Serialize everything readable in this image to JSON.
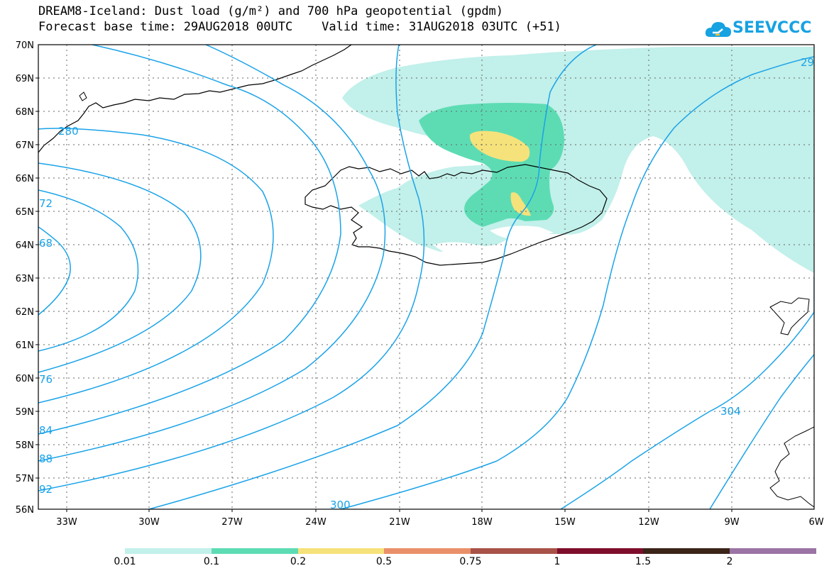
{
  "title_line1": "DREAM8-Iceland: Dust load (g/m²) and 700 hPa geopotential (gpdm)",
  "title_line2": "Forecast base time: 29AUG2018 00UTC    Valid time: 31AUG2018 03UTC (+51)",
  "logo": {
    "text": "SEEVCCC",
    "icon": "cloud-icon",
    "color": "#17a2e2"
  },
  "lat_labels": [
    "70N",
    "69N",
    "68N",
    "67N",
    "66N",
    "65N",
    "64N",
    "63N",
    "62N",
    "61N",
    "60N",
    "59N",
    "58N",
    "57N",
    "56N"
  ],
  "lon_labels": [
    "33W",
    "30W",
    "27W",
    "24W",
    "21W",
    "18W",
    "15W",
    "12W",
    "9W",
    "6W"
  ],
  "contour_labels": [
    "280",
    "72",
    "68",
    "76",
    "84",
    "88",
    "92",
    "300",
    "304",
    "29"
  ],
  "colorbar": {
    "colors": [
      "#c2f0ea",
      "#5ddcb4",
      "#f6e27a",
      "#e9906a",
      "#a85248",
      "#7d0d2b",
      "#3b2418",
      "#9b73a4"
    ],
    "labels": [
      "0.01",
      "0.1",
      "0.2",
      "0.5",
      "0.75",
      "1",
      "1.5",
      "2"
    ]
  },
  "contour_color": "#1aa3e8"
}
